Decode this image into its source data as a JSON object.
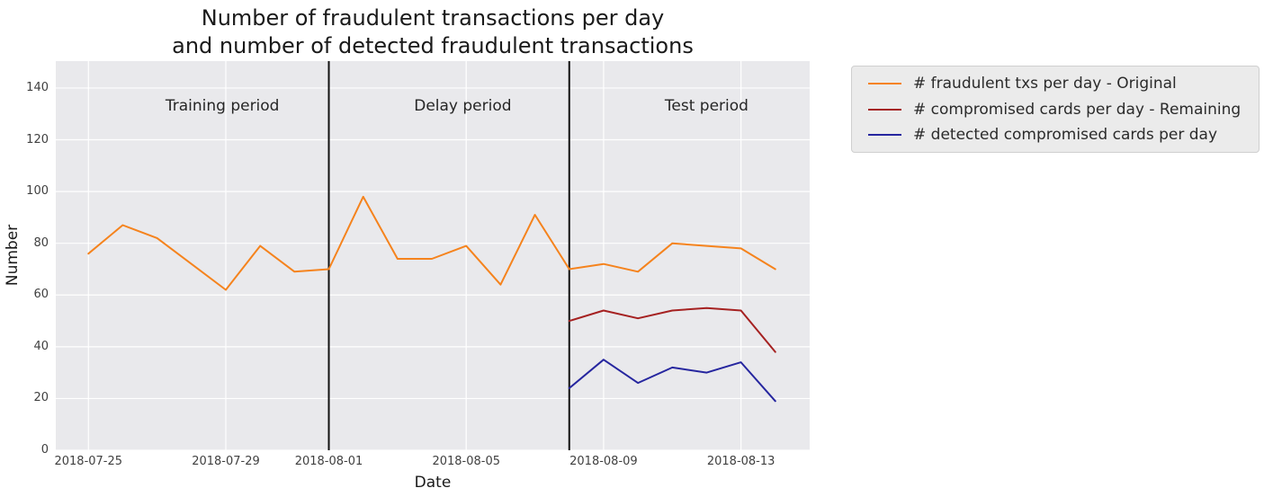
{
  "chart": {
    "title_line1": "Number of fraudulent transactions per day",
    "title_line2": "and number of detected fraudulent transactions",
    "xlabel": "Date",
    "ylabel": "Number"
  },
  "chart_data": {
    "type": "line",
    "title": "Number of fraudulent transactions per day\nand number of detected fraudulent transactions",
    "xlabel": "Date",
    "ylabel": "Number",
    "grid": true,
    "panel_background": "#e9e9ec",
    "grid_color": "#ffffff",
    "legend_position": "outside upper right",
    "xlim_days": [
      -0.95,
      21.0
    ],
    "ylim": [
      0,
      150.4
    ],
    "y_ticks": [
      0,
      20,
      40,
      60,
      80,
      100,
      120,
      140
    ],
    "x_ticks": [
      {
        "day": 0,
        "label": "2018-07-25"
      },
      {
        "day": 4,
        "label": "2018-07-29"
      },
      {
        "day": 7,
        "label": "2018-08-01"
      },
      {
        "day": 11,
        "label": "2018-08-05"
      },
      {
        "day": 15,
        "label": "2018-08-09"
      },
      {
        "day": 19,
        "label": "2018-08-13"
      }
    ],
    "vertical_lines": [
      {
        "day": 7,
        "date": "2018-08-01",
        "color": "#111111"
      },
      {
        "day": 14,
        "date": "2018-08-08",
        "color": "#111111"
      }
    ],
    "annotations": [
      {
        "text": "Training period",
        "day": 3.9,
        "value": 133
      },
      {
        "text": "Delay period",
        "day": 10.9,
        "value": 133
      },
      {
        "text": "Test period",
        "day": 18.0,
        "value": 133
      }
    ],
    "series": [
      {
        "name": "# fraudulent txs per day - Original",
        "color": "#f5831d",
        "start_index": 0,
        "dates": [
          "2018-07-25",
          "2018-07-26",
          "2018-07-27",
          "2018-07-28",
          "2018-07-29",
          "2018-07-30",
          "2018-07-31",
          "2018-08-01",
          "2018-08-02",
          "2018-08-03",
          "2018-08-04",
          "2018-08-05",
          "2018-08-06",
          "2018-08-07",
          "2018-08-08",
          "2018-08-09",
          "2018-08-10",
          "2018-08-11",
          "2018-08-12",
          "2018-08-13",
          "2018-08-14"
        ],
        "values": [
          76,
          87,
          82,
          72,
          62,
          79,
          69,
          70,
          98,
          74,
          74,
          79,
          64,
          91,
          70,
          72,
          69,
          80,
          79,
          78,
          70
        ]
      },
      {
        "name": "# compromised cards per day - Remaining",
        "color": "#a52121",
        "start_index": 14,
        "dates": [
          "2018-08-08",
          "2018-08-09",
          "2018-08-10",
          "2018-08-11",
          "2018-08-12",
          "2018-08-13",
          "2018-08-14"
        ],
        "values": [
          50,
          54,
          51,
          54,
          55,
          54,
          38
        ]
      },
      {
        "name": "# detected compromised cards per day",
        "color": "#26269f",
        "start_index": 14,
        "dates": [
          "2018-08-08",
          "2018-08-09",
          "2018-08-10",
          "2018-08-11",
          "2018-08-12",
          "2018-08-13",
          "2018-08-14"
        ],
        "values": [
          24,
          35,
          26,
          32,
          30,
          34,
          19
        ]
      }
    ]
  }
}
